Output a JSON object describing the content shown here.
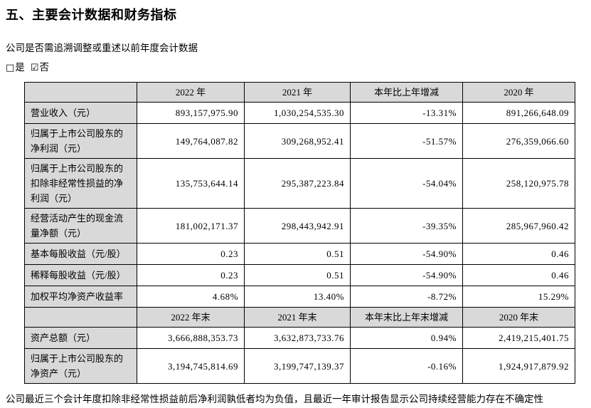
{
  "page": {
    "title": "五、主要会计数据和财务指标",
    "question": "公司是否需追溯调整或重述以前年度会计数据",
    "checkbox_yes": {
      "glyph": "□",
      "label": "是",
      "checked": false
    },
    "checkbox_no": {
      "glyph": "☑",
      "label": "否",
      "checked": true
    },
    "footnote": "公司最近三个会计年度扣除非经常性损益前后净利润孰低者均为负值，且最近一年审计报告显示公司持续经营能力存在不确定性"
  },
  "colors": {
    "header_bg": "#d9d9d9",
    "border": "#000000",
    "text": "#000000",
    "page_bg": "#ffffff"
  },
  "table": {
    "sections": [
      {
        "header": [
          "",
          "2022 年",
          "2021 年",
          "本年比上年增减",
          "2020 年"
        ],
        "rows": [
          {
            "label": "营业收入（元）",
            "lines": 1,
            "values": [
              "893,157,975.90",
              "1,030,254,535.30",
              "-13.31%",
              "891,266,648.09"
            ]
          },
          {
            "label": "归属于上市公司股东的净利润（元）",
            "lines": 2,
            "values": [
              "149,764,087.82",
              "309,268,952.41",
              "-51.57%",
              "276,359,066.60"
            ]
          },
          {
            "label": "归属于上市公司股东的扣除非经常性损益的净利润（元）",
            "lines": 3,
            "values": [
              "135,753,644.14",
              "295,387,223.84",
              "-54.04%",
              "258,120,975.78"
            ]
          },
          {
            "label": "经营活动产生的现金流量净额（元）",
            "lines": 2,
            "values": [
              "181,002,171.37",
              "298,443,942.91",
              "-39.35%",
              "285,967,960.42"
            ]
          },
          {
            "label": "基本每股收益（元/股）",
            "lines": 1,
            "values": [
              "0.23",
              "0.51",
              "-54.90%",
              "0.46"
            ]
          },
          {
            "label": "稀释每股收益（元/股）",
            "lines": 1,
            "values": [
              "0.23",
              "0.51",
              "-54.90%",
              "0.46"
            ]
          },
          {
            "label": "加权平均净资产收益率",
            "lines": 1,
            "values": [
              "4.68%",
              "13.40%",
              "-8.72%",
              "15.29%"
            ]
          }
        ]
      },
      {
        "header": [
          "",
          "2022 年末",
          "2021 年末",
          "本年末比上年末增减",
          "2020 年末"
        ],
        "rows": [
          {
            "label": "资产总额（元）",
            "lines": 1,
            "values": [
              "3,666,888,353.73",
              "3,632,873,733.76",
              "0.94%",
              "2,419,215,401.75"
            ]
          },
          {
            "label": "归属于上市公司股东的净资产（元）",
            "lines": 2,
            "values": [
              "3,194,745,814.69",
              "3,199,747,139.37",
              "-0.16%",
              "1,924,917,879.92"
            ]
          }
        ]
      }
    ]
  }
}
